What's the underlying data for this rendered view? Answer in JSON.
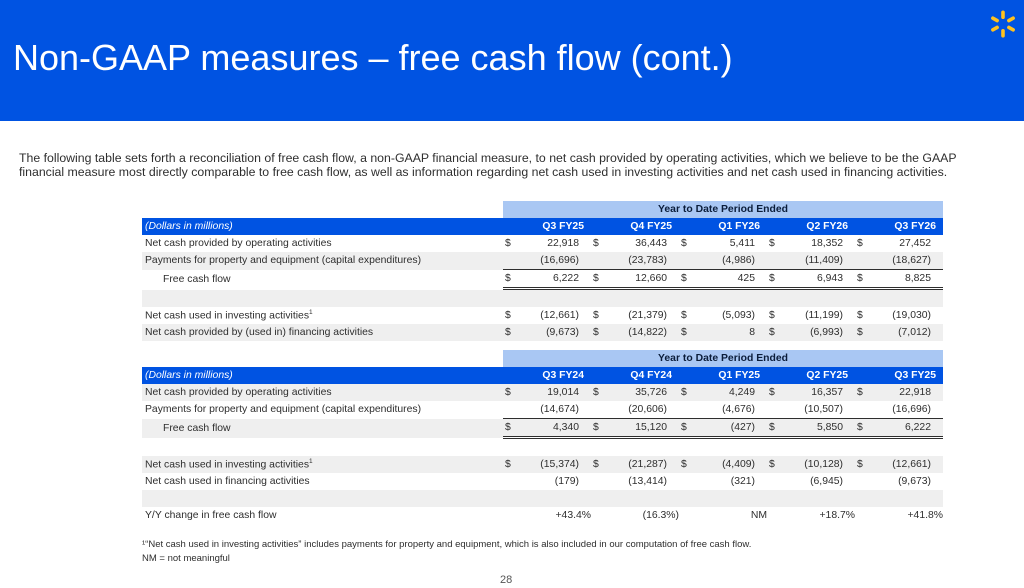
{
  "slide": {
    "title": "Non-GAAP measures – free cash flow (cont.)",
    "logo_icon": "walmart-spark-icon",
    "brand_color": "#0053e2",
    "accent_color": "#ffc220",
    "intro": "The following table sets forth a reconciliation of free cash flow, a non-GAAP financial measure, to net cash provided by operating activities, which we believe to be the GAAP financial measure most directly comparable to free cash flow, as well as information regarding net cash used in investing activities and net cash used in financing activities.",
    "footnote1": "¹“Net cash used in investing activities” includes payments for property and equipment, which is also included in our computation of free cash flow.",
    "footnote2": "NM = not meaningful",
    "page_number": "28"
  },
  "table1": {
    "period_header": "Year to Date Period Ended",
    "unit_label": "(Dollars in millions)",
    "columns": [
      "Q3 FY25",
      "Q4 FY25",
      "Q1 FY26",
      "Q2 FY26",
      "Q3 FY26"
    ],
    "rows": {
      "operating": {
        "label": "Net cash provided by operating activities",
        "values": [
          {
            "d": "$",
            "v": "22,918"
          },
          {
            "d": "$",
            "v": "36,443"
          },
          {
            "d": "$",
            "v": "5,411"
          },
          {
            "d": "$",
            "v": "18,352"
          },
          {
            "d": "$",
            "v": "27,452"
          }
        ]
      },
      "capex": {
        "label": "Payments for property and equipment (capital expenditures)",
        "values": [
          {
            "d": "",
            "v": "(16,696)"
          },
          {
            "d": "",
            "v": "(23,783)"
          },
          {
            "d": "",
            "v": "(4,986)"
          },
          {
            "d": "",
            "v": "(11,409)"
          },
          {
            "d": "",
            "v": "(18,627)"
          }
        ]
      },
      "fcf": {
        "label": "Free cash flow",
        "values": [
          {
            "d": "$",
            "v": "6,222"
          },
          {
            "d": "$",
            "v": "12,660"
          },
          {
            "d": "$",
            "v": "425"
          },
          {
            "d": "$",
            "v": "6,943"
          },
          {
            "d": "$",
            "v": "8,825"
          }
        ]
      },
      "investing": {
        "label": "Net cash used in investing activities",
        "sup": "1",
        "values": [
          {
            "d": "$",
            "v": "(12,661)"
          },
          {
            "d": "$",
            "v": "(21,379)"
          },
          {
            "d": "$",
            "v": "(5,093)"
          },
          {
            "d": "$",
            "v": "(11,199)"
          },
          {
            "d": "$",
            "v": "(19,030)"
          }
        ]
      },
      "financing": {
        "label": "Net cash provided by (used in) financing activities",
        "values": [
          {
            "d": "$",
            "v": "(9,673)"
          },
          {
            "d": "$",
            "v": "(14,822)"
          },
          {
            "d": "$",
            "v": "8"
          },
          {
            "d": "$",
            "v": "(6,993)"
          },
          {
            "d": "$",
            "v": "(7,012)"
          }
        ]
      }
    }
  },
  "table2": {
    "period_header": "Year to Date Period Ended",
    "unit_label": "(Dollars in millions)",
    "columns": [
      "Q3 FY24",
      "Q4 FY24",
      "Q1 FY25",
      "Q2 FY25",
      "Q3 FY25"
    ],
    "rows": {
      "operating": {
        "label": "Net cash provided by operating activities",
        "values": [
          {
            "d": "$",
            "v": "19,014"
          },
          {
            "d": "$",
            "v": "35,726"
          },
          {
            "d": "$",
            "v": "4,249"
          },
          {
            "d": "$",
            "v": "16,357"
          },
          {
            "d": "$",
            "v": "22,918"
          }
        ]
      },
      "capex": {
        "label": "Payments for property and equipment (capital expenditures)",
        "values": [
          {
            "d": "",
            "v": "(14,674)"
          },
          {
            "d": "",
            "v": "(20,606)"
          },
          {
            "d": "",
            "v": "(4,676)"
          },
          {
            "d": "",
            "v": "(10,507)"
          },
          {
            "d": "",
            "v": "(16,696)"
          }
        ]
      },
      "fcf": {
        "label": "Free cash flow",
        "values": [
          {
            "d": "$",
            "v": "4,340"
          },
          {
            "d": "$",
            "v": "15,120"
          },
          {
            "d": "$",
            "v": "(427)"
          },
          {
            "d": "$",
            "v": "5,850"
          },
          {
            "d": "$",
            "v": "6,222"
          }
        ]
      },
      "investing": {
        "label": "Net cash used in investing activities",
        "sup": "1",
        "values": [
          {
            "d": "$",
            "v": "(15,374)"
          },
          {
            "d": "$",
            "v": "(21,287)"
          },
          {
            "d": "$",
            "v": "(4,409)"
          },
          {
            "d": "$",
            "v": "(10,128)"
          },
          {
            "d": "$",
            "v": "(12,661)"
          }
        ]
      },
      "financing": {
        "label": "Net cash used in financing activities",
        "values": [
          {
            "d": "",
            "v": "(179)"
          },
          {
            "d": "",
            "v": "(13,414)"
          },
          {
            "d": "",
            "v": "(321)"
          },
          {
            "d": "",
            "v": "(6,945)"
          },
          {
            "d": "",
            "v": "(9,673)"
          }
        ]
      },
      "yoy": {
        "label": "Y/Y change in free cash flow",
        "values": [
          "+43.4%",
          "(16.3%)",
          "NM",
          "+18.7%",
          "+41.8%"
        ]
      }
    }
  }
}
